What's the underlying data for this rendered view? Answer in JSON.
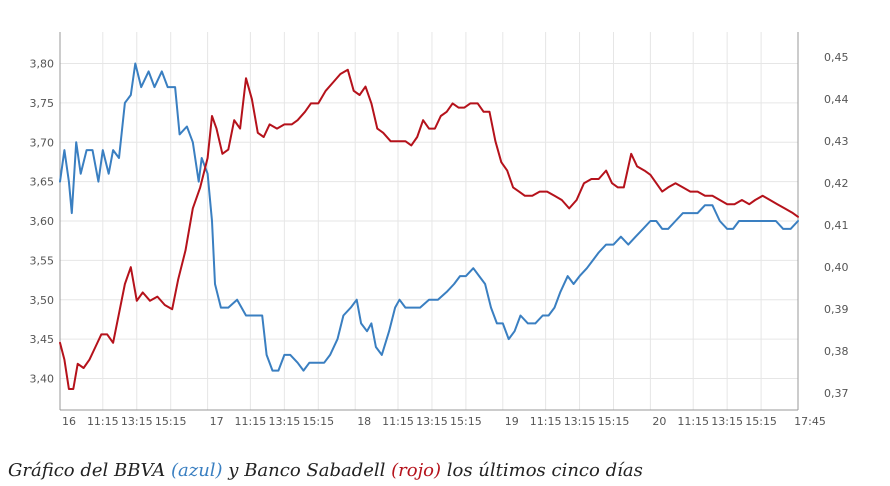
{
  "chart_data": {
    "type": "line",
    "grid": true,
    "x_range": [
      0,
      5
    ],
    "x_ticks": [
      {
        "x": 0.0,
        "label": "16",
        "day": true
      },
      {
        "x": 0.29,
        "label": "11:15"
      },
      {
        "x": 0.52,
        "label": "13:15"
      },
      {
        "x": 0.75,
        "label": "15:15"
      },
      {
        "x": 1.0,
        "label": "17",
        "day": true
      },
      {
        "x": 1.29,
        "label": "11:15"
      },
      {
        "x": 1.52,
        "label": "13:15"
      },
      {
        "x": 1.75,
        "label": "15:15"
      },
      {
        "x": 2.0,
        "label": "18",
        "day": true
      },
      {
        "x": 2.29,
        "label": "11:15"
      },
      {
        "x": 2.52,
        "label": "13:15"
      },
      {
        "x": 2.75,
        "label": "15:15"
      },
      {
        "x": 3.0,
        "label": "19",
        "day": true
      },
      {
        "x": 3.29,
        "label": "11:15"
      },
      {
        "x": 3.52,
        "label": "13:15"
      },
      {
        "x": 3.75,
        "label": "15:15"
      },
      {
        "x": 4.0,
        "label": "20",
        "day": true
      },
      {
        "x": 4.29,
        "label": "11:15"
      },
      {
        "x": 4.52,
        "label": "13:15"
      },
      {
        "x": 4.75,
        "label": "15:15"
      },
      {
        "x": 5.0,
        "label": "17:45"
      }
    ],
    "y_left": {
      "range": [
        3.36,
        3.84
      ],
      "ticks": [
        "3,40",
        "3,45",
        "3,50",
        "3,55",
        "3,60",
        "3,65",
        "3,70",
        "3,75",
        "3,80"
      ]
    },
    "y_right": {
      "range": [
        0.366,
        0.456
      ],
      "ticks": [
        "0,37",
        "0,38",
        "0,39",
        "0,40",
        "0,41",
        "0,42",
        "0,43",
        "0,44",
        "0,45"
      ]
    },
    "series": [
      {
        "axis": "left",
        "color": "#3a7fc1",
        "points": [
          [
            0.0,
            3.65
          ],
          [
            0.03,
            3.69
          ],
          [
            0.06,
            3.65
          ],
          [
            0.08,
            3.61
          ],
          [
            0.11,
            3.7
          ],
          [
            0.14,
            3.66
          ],
          [
            0.18,
            3.69
          ],
          [
            0.22,
            3.69
          ],
          [
            0.26,
            3.65
          ],
          [
            0.29,
            3.69
          ],
          [
            0.33,
            3.66
          ],
          [
            0.36,
            3.69
          ],
          [
            0.4,
            3.68
          ],
          [
            0.44,
            3.75
          ],
          [
            0.48,
            3.76
          ],
          [
            0.51,
            3.8
          ],
          [
            0.55,
            3.77
          ],
          [
            0.6,
            3.79
          ],
          [
            0.64,
            3.77
          ],
          [
            0.69,
            3.79
          ],
          [
            0.73,
            3.77
          ],
          [
            0.78,
            3.77
          ],
          [
            0.81,
            3.71
          ],
          [
            0.86,
            3.72
          ],
          [
            0.9,
            3.7
          ],
          [
            0.94,
            3.65
          ],
          [
            0.96,
            3.68
          ],
          [
            1.0,
            3.66
          ],
          [
            1.03,
            3.6
          ],
          [
            1.05,
            3.52
          ],
          [
            1.09,
            3.49
          ],
          [
            1.14,
            3.49
          ],
          [
            1.2,
            3.5
          ],
          [
            1.26,
            3.48
          ],
          [
            1.31,
            3.48
          ],
          [
            1.37,
            3.48
          ],
          [
            1.4,
            3.43
          ],
          [
            1.44,
            3.41
          ],
          [
            1.48,
            3.41
          ],
          [
            1.52,
            3.43
          ],
          [
            1.56,
            3.43
          ],
          [
            1.61,
            3.42
          ],
          [
            1.65,
            3.41
          ],
          [
            1.69,
            3.42
          ],
          [
            1.74,
            3.42
          ],
          [
            1.79,
            3.42
          ],
          [
            1.83,
            3.43
          ],
          [
            1.88,
            3.45
          ],
          [
            1.92,
            3.48
          ],
          [
            1.97,
            3.49
          ],
          [
            2.01,
            3.5
          ],
          [
            2.04,
            3.47
          ],
          [
            2.08,
            3.46
          ],
          [
            2.11,
            3.47
          ],
          [
            2.14,
            3.44
          ],
          [
            2.18,
            3.43
          ],
          [
            2.23,
            3.46
          ],
          [
            2.27,
            3.49
          ],
          [
            2.3,
            3.5
          ],
          [
            2.34,
            3.49
          ],
          [
            2.39,
            3.49
          ],
          [
            2.44,
            3.49
          ],
          [
            2.5,
            3.5
          ],
          [
            2.56,
            3.5
          ],
          [
            2.62,
            3.51
          ],
          [
            2.67,
            3.52
          ],
          [
            2.71,
            3.53
          ],
          [
            2.75,
            3.53
          ],
          [
            2.8,
            3.54
          ],
          [
            2.84,
            3.53
          ],
          [
            2.88,
            3.52
          ],
          [
            2.92,
            3.49
          ],
          [
            2.96,
            3.47
          ],
          [
            3.0,
            3.47
          ],
          [
            3.04,
            3.45
          ],
          [
            3.08,
            3.46
          ],
          [
            3.12,
            3.48
          ],
          [
            3.17,
            3.47
          ],
          [
            3.22,
            3.47
          ],
          [
            3.27,
            3.48
          ],
          [
            3.31,
            3.48
          ],
          [
            3.35,
            3.49
          ],
          [
            3.39,
            3.51
          ],
          [
            3.44,
            3.53
          ],
          [
            3.48,
            3.52
          ],
          [
            3.52,
            3.53
          ],
          [
            3.57,
            3.54
          ],
          [
            3.61,
            3.55
          ],
          [
            3.65,
            3.56
          ],
          [
            3.7,
            3.57
          ],
          [
            3.75,
            3.57
          ],
          [
            3.8,
            3.58
          ],
          [
            3.85,
            3.57
          ],
          [
            3.9,
            3.58
          ],
          [
            3.95,
            3.59
          ],
          [
            4.0,
            3.6
          ],
          [
            4.04,
            3.6
          ],
          [
            4.08,
            3.59
          ],
          [
            4.12,
            3.59
          ],
          [
            4.17,
            3.6
          ],
          [
            4.22,
            3.61
          ],
          [
            4.27,
            3.61
          ],
          [
            4.32,
            3.61
          ],
          [
            4.37,
            3.62
          ],
          [
            4.42,
            3.62
          ],
          [
            4.47,
            3.6
          ],
          [
            4.52,
            3.59
          ],
          [
            4.56,
            3.59
          ],
          [
            4.6,
            3.6
          ],
          [
            4.65,
            3.6
          ],
          [
            4.7,
            3.6
          ],
          [
            4.75,
            3.6
          ],
          [
            4.8,
            3.6
          ],
          [
            4.85,
            3.6
          ],
          [
            4.9,
            3.59
          ],
          [
            4.95,
            3.59
          ],
          [
            5.0,
            3.6
          ]
        ]
      },
      {
        "axis": "right",
        "color": "#b5121b",
        "points": [
          [
            0.0,
            0.382
          ],
          [
            0.03,
            0.378
          ],
          [
            0.06,
            0.371
          ],
          [
            0.09,
            0.371
          ],
          [
            0.12,
            0.377
          ],
          [
            0.16,
            0.376
          ],
          [
            0.2,
            0.378
          ],
          [
            0.24,
            0.381
          ],
          [
            0.28,
            0.384
          ],
          [
            0.32,
            0.384
          ],
          [
            0.36,
            0.382
          ],
          [
            0.4,
            0.389
          ],
          [
            0.44,
            0.396
          ],
          [
            0.48,
            0.4
          ],
          [
            0.52,
            0.392
          ],
          [
            0.56,
            0.394
          ],
          [
            0.61,
            0.392
          ],
          [
            0.66,
            0.393
          ],
          [
            0.71,
            0.391
          ],
          [
            0.76,
            0.39
          ],
          [
            0.8,
            0.397
          ],
          [
            0.85,
            0.404
          ],
          [
            0.9,
            0.414
          ],
          [
            0.95,
            0.419
          ],
          [
            1.0,
            0.426
          ],
          [
            1.03,
            0.436
          ],
          [
            1.06,
            0.433
          ],
          [
            1.1,
            0.427
          ],
          [
            1.14,
            0.428
          ],
          [
            1.18,
            0.435
          ],
          [
            1.22,
            0.433
          ],
          [
            1.26,
            0.445
          ],
          [
            1.3,
            0.44
          ],
          [
            1.34,
            0.432
          ],
          [
            1.38,
            0.431
          ],
          [
            1.42,
            0.434
          ],
          [
            1.47,
            0.433
          ],
          [
            1.52,
            0.434
          ],
          [
            1.57,
            0.434
          ],
          [
            1.61,
            0.435
          ],
          [
            1.66,
            0.437
          ],
          [
            1.7,
            0.439
          ],
          [
            1.75,
            0.439
          ],
          [
            1.8,
            0.442
          ],
          [
            1.85,
            0.444
          ],
          [
            1.9,
            0.446
          ],
          [
            1.95,
            0.447
          ],
          [
            1.99,
            0.442
          ],
          [
            2.03,
            0.441
          ],
          [
            2.07,
            0.443
          ],
          [
            2.11,
            0.439
          ],
          [
            2.15,
            0.433
          ],
          [
            2.19,
            0.432
          ],
          [
            2.24,
            0.43
          ],
          [
            2.29,
            0.43
          ],
          [
            2.34,
            0.43
          ],
          [
            2.38,
            0.429
          ],
          [
            2.42,
            0.431
          ],
          [
            2.46,
            0.435
          ],
          [
            2.5,
            0.433
          ],
          [
            2.54,
            0.433
          ],
          [
            2.58,
            0.436
          ],
          [
            2.62,
            0.437
          ],
          [
            2.66,
            0.439
          ],
          [
            2.7,
            0.438
          ],
          [
            2.74,
            0.438
          ],
          [
            2.78,
            0.439
          ],
          [
            2.83,
            0.439
          ],
          [
            2.87,
            0.437
          ],
          [
            2.91,
            0.437
          ],
          [
            2.95,
            0.43
          ],
          [
            2.99,
            0.425
          ],
          [
            3.03,
            0.423
          ],
          [
            3.07,
            0.419
          ],
          [
            3.11,
            0.418
          ],
          [
            3.15,
            0.417
          ],
          [
            3.2,
            0.417
          ],
          [
            3.25,
            0.418
          ],
          [
            3.3,
            0.418
          ],
          [
            3.35,
            0.417
          ],
          [
            3.4,
            0.416
          ],
          [
            3.45,
            0.414
          ],
          [
            3.5,
            0.416
          ],
          [
            3.55,
            0.42
          ],
          [
            3.6,
            0.421
          ],
          [
            3.65,
            0.421
          ],
          [
            3.7,
            0.423
          ],
          [
            3.74,
            0.42
          ],
          [
            3.78,
            0.419
          ],
          [
            3.82,
            0.419
          ],
          [
            3.87,
            0.427
          ],
          [
            3.91,
            0.424
          ],
          [
            3.96,
            0.423
          ],
          [
            4.0,
            0.422
          ],
          [
            4.04,
            0.42
          ],
          [
            4.08,
            0.418
          ],
          [
            4.12,
            0.419
          ],
          [
            4.17,
            0.42
          ],
          [
            4.22,
            0.419
          ],
          [
            4.27,
            0.418
          ],
          [
            4.32,
            0.418
          ],
          [
            4.37,
            0.417
          ],
          [
            4.42,
            0.417
          ],
          [
            4.47,
            0.416
          ],
          [
            4.52,
            0.415
          ],
          [
            4.57,
            0.415
          ],
          [
            4.62,
            0.416
          ],
          [
            4.67,
            0.415
          ],
          [
            4.71,
            0.416
          ],
          [
            4.76,
            0.417
          ],
          [
            4.81,
            0.416
          ],
          [
            4.86,
            0.415
          ],
          [
            4.91,
            0.414
          ],
          [
            4.96,
            0.413
          ],
          [
            5.0,
            0.412
          ]
        ]
      }
    ]
  },
  "caption": {
    "prefix": "Gráfico del BBVA ",
    "blue_word": "(azul)",
    "middle": " y Banco Sabadell ",
    "red_word": "(rojo)",
    "suffix": " los últimos cinco días"
  }
}
